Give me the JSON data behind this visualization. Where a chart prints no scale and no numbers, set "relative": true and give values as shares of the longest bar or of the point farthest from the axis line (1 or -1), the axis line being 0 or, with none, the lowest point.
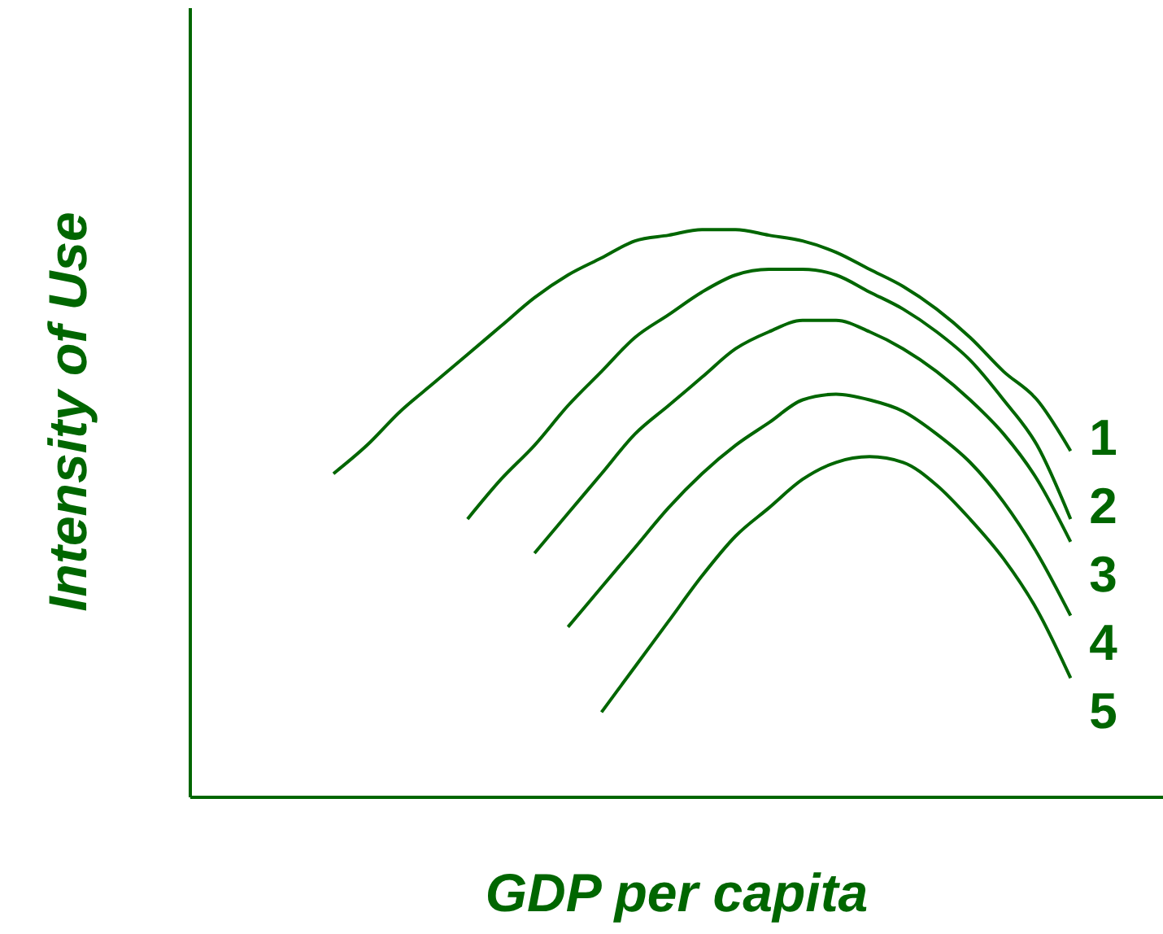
{
  "chart_data": {
    "type": "line",
    "relative": true,
    "xlabel": "GDP per capita",
    "ylabel": "Intensity of Use",
    "legend": false,
    "grid": false,
    "marker": "none",
    "line_style": "solid",
    "categories": [
      null,
      null,
      null,
      null,
      null,
      null,
      null,
      null,
      null,
      null,
      null,
      null,
      null,
      null,
      null,
      null,
      null,
      null,
      null,
      null,
      null,
      null,
      null
    ],
    "series": [
      {
        "name": "1",
        "color": "#006600",
        "values": [
          0.57,
          0.62,
          0.68,
          0.73,
          0.78,
          0.83,
          0.88,
          0.92,
          0.95,
          0.98,
          0.99,
          1,
          1,
          0.99,
          0.98,
          0.96,
          0.93,
          0.9,
          0.86,
          0.81,
          0.75,
          0.7,
          0.61
        ]
      },
      {
        "name": "2",
        "color": "#006600",
        "values": [
          null,
          null,
          null,
          null,
          0.49,
          0.56,
          0.62,
          0.69,
          0.75,
          0.81,
          0.85,
          0.89,
          0.92,
          0.93,
          0.93,
          0.92,
          0.89,
          0.86,
          0.82,
          0.77,
          0.7,
          0.62,
          0.49
        ]
      },
      {
        "name": "3",
        "color": "#006600",
        "values": [
          null,
          null,
          null,
          null,
          null,
          null,
          0.43,
          0.5,
          0.57,
          0.64,
          0.69,
          0.74,
          0.79,
          0.82,
          0.84,
          0.84,
          0.82,
          0.79,
          0.75,
          0.7,
          0.64,
          0.56,
          0.45
        ]
      },
      {
        "name": "4",
        "color": "#006600",
        "values": [
          null,
          null,
          null,
          null,
          null,
          null,
          null,
          0.3,
          0.37,
          0.44,
          0.51,
          0.57,
          0.62,
          0.66,
          0.7,
          0.71,
          0.7,
          0.68,
          0.64,
          0.59,
          0.52,
          0.43,
          0.32
        ]
      },
      {
        "name": "5",
        "color": "#006600",
        "values": [
          null,
          null,
          null,
          null,
          null,
          null,
          null,
          null,
          0.15,
          0.23,
          0.31,
          0.39,
          0.46,
          0.51,
          0.56,
          0.59,
          0.6,
          0.59,
          0.55,
          0.49,
          0.42,
          0.33,
          0.21
        ]
      }
    ]
  }
}
